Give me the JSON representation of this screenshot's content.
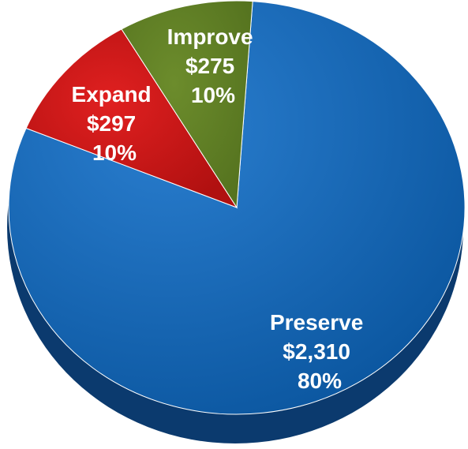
{
  "chart_data": {
    "type": "pie",
    "title": "",
    "slices": [
      {
        "name": "Preserve",
        "amount": "$2,310",
        "percent": "80%",
        "value": 2310,
        "color": "#0a5aa6"
      },
      {
        "name": "Expand",
        "amount": "$297",
        "percent": "10%",
        "value": 297,
        "color": "#cc1414"
      },
      {
        "name": "Improve",
        "amount": "$275",
        "percent": "10%",
        "value": 275,
        "color": "#5f7d24"
      }
    ]
  }
}
